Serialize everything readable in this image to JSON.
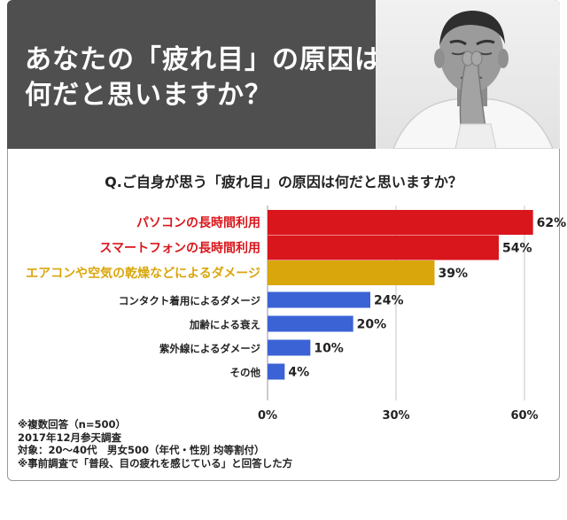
{
  "banner": {
    "title": "あなたの「疲れ目」の原因は\n何だと思いますか？"
  },
  "question": "Q.ご自身が思う「疲れ目」の原因は何だと思いますか？",
  "chart_data": {
    "type": "bar",
    "orientation": "horizontal",
    "title": "Q.ご自身が思う「疲れ目」の原因は何だと思いますか？",
    "categories": [
      "パソコンの長時間利用",
      "スマートフォンの長時間利用",
      "エアコンや空気の乾燥などによるダメージ",
      "コンタクト着用によるダメージ",
      "加齢による衰え",
      "紫外線によるダメージ",
      "その他"
    ],
    "values": [
      62,
      54,
      39,
      24,
      20,
      10,
      4
    ],
    "value_labels": [
      "62%",
      "54%",
      "39%",
      "24%",
      "20%",
      "10%",
      "4%"
    ],
    "bar_colors": [
      "#d9161c",
      "#d9161c",
      "#d9a60c",
      "#3b63d6",
      "#3b63d6",
      "#3b63d6",
      "#3b63d6"
    ],
    "label_colors": [
      "#d9161c",
      "#d9161c",
      "#d9a60c",
      "#222222",
      "#222222",
      "#222222",
      "#222222"
    ],
    "xlim": [
      0,
      60
    ],
    "xticks": [
      0,
      30,
      60
    ],
    "xtick_labels": [
      "0%",
      "30%",
      "60%"
    ],
    "grid": true,
    "xlabel": "",
    "ylabel": ""
  },
  "notes": [
    "※複数回答（n=500）",
    "2017年12月参天調査",
    "対象：20～40代　男女500（年代・性別 均等割付）",
    "※事前調査で「普段、目の疲れを感じている」と回答した方"
  ],
  "colors": {
    "banner_bg": "#4f4f4f",
    "card_border": "#9a9a9a"
  }
}
